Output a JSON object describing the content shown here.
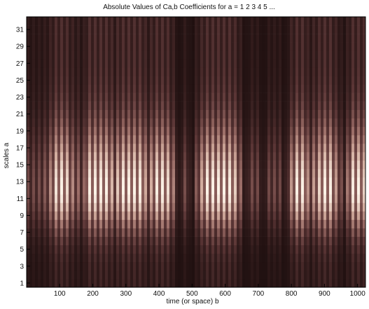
{
  "chart_data": {
    "type": "heatmap",
    "title": "Absolute Values of Ca,b Coefficients for a =  1 2 3 4 5 ...",
    "xlabel": "time (or space) b",
    "ylabel": "scales a",
    "xlim": [
      0,
      1024
    ],
    "ylim": [
      0.5,
      32.5
    ],
    "x_ticks": [
      100,
      200,
      300,
      400,
      500,
      600,
      700,
      800,
      900,
      1000
    ],
    "y_ticks": [
      1,
      3,
      5,
      7,
      9,
      11,
      13,
      15,
      17,
      19,
      21,
      23,
      25,
      27,
      29,
      31
    ],
    "grid": false,
    "colormap": "pink",
    "colormap_stops": [
      "#1e0f0f",
      "#5a3535",
      "#9a6c66",
      "#d3ad9f",
      "#fbf2e6"
    ],
    "envelope_peaks_b": [
      105,
      200,
      235,
      300,
      340,
      410,
      555,
      610,
      830,
      905,
      1000
    ],
    "dark_band_b": [
      170,
      265,
      365,
      460,
      500,
      660,
      715,
      780,
      855,
      960
    ],
    "peak_scale_a": 12
  }
}
